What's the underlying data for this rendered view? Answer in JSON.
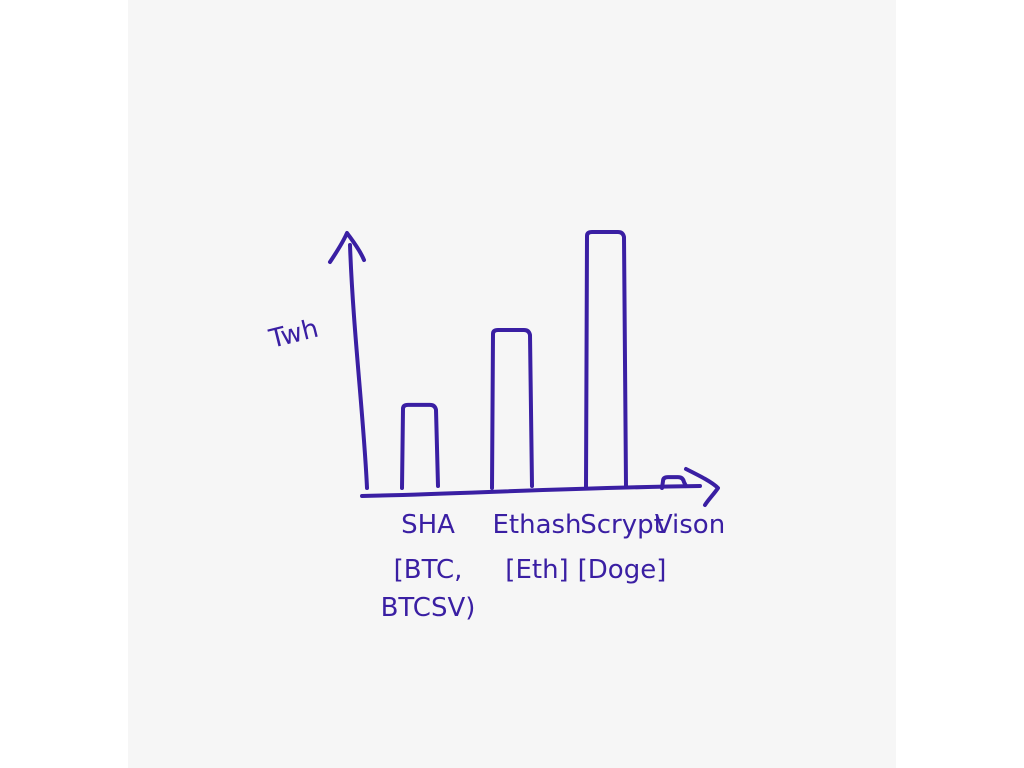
{
  "ink_color": "#3a1fa3",
  "background_color": "#f6f6f6",
  "chart_data": {
    "type": "bar",
    "title": "",
    "xlabel": "",
    "ylabel": "Twh",
    "grid": false,
    "axis_ticks": "none",
    "categories": [
      {
        "name": "SHA",
        "coins": [
          "[BTC,",
          "BTCSV)"
        ],
        "value": 33
      },
      {
        "name": "Ethash",
        "coins": [
          "[Eth]"
        ],
        "value": 62
      },
      {
        "name": "Scrypt",
        "coins": [
          "[Doge]"
        ],
        "value": 100
      },
      {
        "name": "Vison",
        "coins": [],
        "value": 5
      }
    ],
    "ylim": [
      0,
      110
    ]
  }
}
